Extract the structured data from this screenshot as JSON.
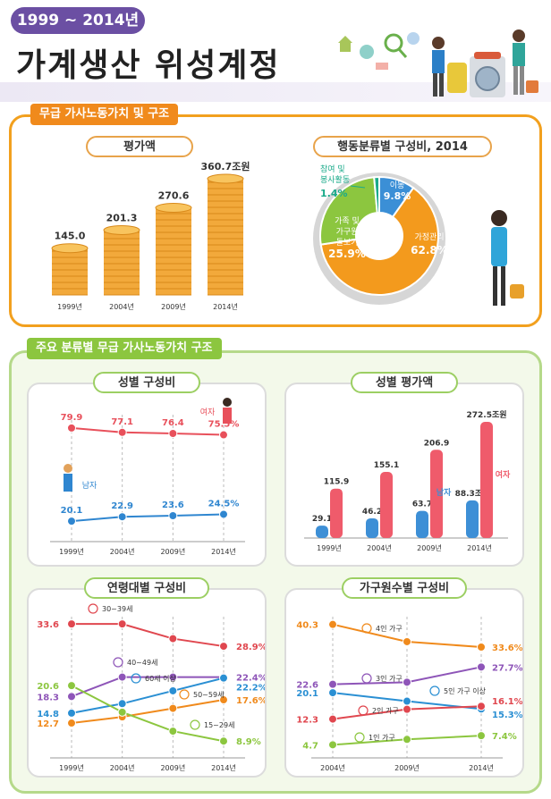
{
  "header": {
    "period": "1999 ~ 2014년",
    "title": "가계생산 위성계정"
  },
  "section1": {
    "tag": "무급 가사노동가치 및 구조",
    "value_title": "평가액",
    "pie_title": "행동분류별 구성비, 2014"
  },
  "section2": {
    "tag": "주요 분류별 무급 가사노동가치 구조",
    "gender_share_title": "성별 구성비",
    "gender_value_title": "성별 평가액",
    "age_title": "연령대별 구성비",
    "household_title": "가구원수별 구성비"
  },
  "chart_data": [
    {
      "id": "total_value",
      "type": "bar",
      "title": "평가액",
      "categories": [
        "1999년",
        "2004년",
        "2009년",
        "2014년"
      ],
      "values": [
        145.0,
        201.3,
        270.6,
        360.7
      ],
      "value_labels": [
        "145.0",
        "201.3",
        "270.6",
        "360.7"
      ],
      "unit": "조원",
      "color": "#f2a93b"
    },
    {
      "id": "activity_share",
      "type": "pie",
      "title": "행동분류별 구성비, 2014",
      "slices": [
        {
          "label": "가정관리",
          "value": 62.8,
          "value_label": "62.8%",
          "color": "#f39a1d"
        },
        {
          "label": "가족 및 가구원 돌보기",
          "value": 25.9,
          "value_label": "25.9%",
          "color": "#8cc63f"
        },
        {
          "label": "참여 및 봉사활동",
          "value": 1.4,
          "value_label": "1.4%",
          "color": "#1aaa8a"
        },
        {
          "label": "이동",
          "value": 9.8,
          "value_label": "9.8%",
          "color": "#3b8fd6"
        }
      ]
    },
    {
      "id": "gender_share",
      "type": "line",
      "title": "성별 구성비",
      "categories": [
        "1999년",
        "2004년",
        "2009년",
        "2014년"
      ],
      "ylim": [
        0,
        100
      ],
      "series": [
        {
          "name": "여자",
          "values": [
            79.9,
            77.1,
            76.4,
            75.5
          ],
          "labels": [
            "79.9",
            "77.1",
            "76.4",
            "75.5%"
          ],
          "color": "#e8505b"
        },
        {
          "name": "남자",
          "values": [
            20.1,
            22.9,
            23.6,
            24.5
          ],
          "labels": [
            "20.1",
            "22.9",
            "23.6",
            "24.5%"
          ],
          "color": "#2f86d0"
        }
      ]
    },
    {
      "id": "gender_value",
      "type": "bar",
      "title": "성별 평가액",
      "categories": [
        "1999년",
        "2004년",
        "2009년",
        "2014년"
      ],
      "unit": "조원",
      "series": [
        {
          "name": "남자",
          "values": [
            29.1,
            46.2,
            63.7,
            88.3
          ],
          "labels": [
            "29.1",
            "46.2",
            "63.7",
            "88.3"
          ],
          "color": "#3d8fd6"
        },
        {
          "name": "여자",
          "values": [
            115.9,
            155.1,
            206.9,
            272.5
          ],
          "labels": [
            "115.9",
            "155.1",
            "206.9",
            "272.5"
          ],
          "color": "#ef5b6b"
        }
      ]
    },
    {
      "id": "age_share",
      "type": "line",
      "title": "연령대별 구성비",
      "categories": [
        "1999년",
        "2004년",
        "2009년",
        "2014년"
      ],
      "series": [
        {
          "name": "30~39세",
          "values": [
            33.6,
            33.6,
            30.5,
            28.9
          ],
          "first_label": "33.6",
          "last_label": "28.9%",
          "color": "#e0474f"
        },
        {
          "name": "40~49세",
          "values": [
            18.3,
            22.4,
            22.4,
            22.4
          ],
          "first_label": "18.3",
          "last_label": "22.4%",
          "color": "#8e55b8"
        },
        {
          "name": "60세 이상",
          "values": [
            14.8,
            16.8,
            19.5,
            22.2
          ],
          "first_label": "14.8",
          "last_label": "22.2%",
          "color": "#2a8fd3"
        },
        {
          "name": "50~59세",
          "values": [
            12.7,
            14.0,
            15.8,
            17.6
          ],
          "first_label": "12.7",
          "last_label": "17.6%",
          "color": "#f08a1c"
        },
        {
          "name": "15~29세",
          "values": [
            20.6,
            15.0,
            11.0,
            8.9
          ],
          "first_label": "20.6",
          "last_label": "8.9%",
          "color": "#8cc63f"
        }
      ]
    },
    {
      "id": "household_share",
      "type": "line",
      "title": "가구원수별 구성비",
      "categories": [
        "2004년",
        "2009년",
        "2014년"
      ],
      "series": [
        {
          "name": "4인 가구",
          "values": [
            40.3,
            35.2,
            33.6
          ],
          "first_label": "40.3",
          "last_label": "33.6%",
          "color": "#f08a1c"
        },
        {
          "name": "3인 가구",
          "values": [
            22.6,
            23.2,
            27.7
          ],
          "first_label": "22.6",
          "last_label": "27.7%",
          "color": "#8e55b8"
        },
        {
          "name": "5인 가구 이상",
          "values": [
            20.1,
            17.6,
            15.3
          ],
          "first_label": "20.1",
          "last_label": "15.3%",
          "color": "#2a8fd3"
        },
        {
          "name": "2인 가구",
          "values": [
            12.3,
            15.2,
            16.1
          ],
          "first_label": "12.3",
          "last_label": "16.1%",
          "color": "#e0474f"
        },
        {
          "name": "1인 가구",
          "values": [
            4.7,
            6.3,
            7.4
          ],
          "first_label": "4.7",
          "last_label": "7.4%",
          "color": "#8cc63f"
        }
      ]
    }
  ]
}
